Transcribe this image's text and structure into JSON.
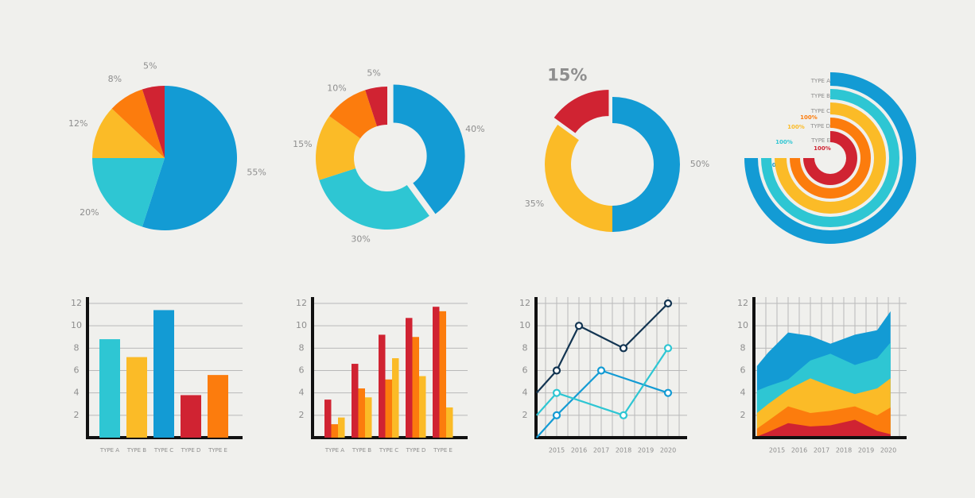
{
  "palette": {
    "blue": "#139bd4",
    "teal": "#2ec6d3",
    "yellow": "#fbbb27",
    "orange": "#fc7c0d",
    "red": "#d02332",
    "navy": "#133552",
    "label": "#8e8e8e",
    "axis": "#111111",
    "grid": "#b9b9b9"
  },
  "chart_data": [
    {
      "type": "pie",
      "slices": [
        {
          "label": "55%",
          "value": 55,
          "color": "blue"
        },
        {
          "label": "20%",
          "value": 20,
          "color": "teal"
        },
        {
          "label": "12%",
          "value": 12,
          "color": "yellow"
        },
        {
          "label": "8%",
          "value": 8,
          "color": "orange"
        },
        {
          "label": "5%",
          "value": 5,
          "color": "red"
        }
      ]
    },
    {
      "type": "pie",
      "variant": "donut",
      "slices": [
        {
          "label": "40%",
          "value": 40,
          "color": "blue",
          "exploded": true
        },
        {
          "label": "30%",
          "value": 30,
          "color": "teal"
        },
        {
          "label": "15%",
          "value": 15,
          "color": "yellow"
        },
        {
          "label": "10%",
          "value": 10,
          "color": "orange"
        },
        {
          "label": "5%",
          "value": 5,
          "color": "red"
        }
      ]
    },
    {
      "type": "pie",
      "variant": "donut",
      "slices": [
        {
          "label": "50%",
          "value": 50,
          "color": "blue"
        },
        {
          "label": "35%",
          "value": 35,
          "color": "yellow"
        },
        {
          "label": "15%",
          "value": 15,
          "color": "red",
          "exploded": true,
          "emphasized": true
        }
      ]
    },
    {
      "type": "pie",
      "variant": "concentric-rings",
      "rings": [
        {
          "label": "TYPE A",
          "value_label": "100%",
          "value": 100,
          "color": "blue"
        },
        {
          "label": "TYPE B",
          "value_label": "100%",
          "value": 100,
          "color": "teal"
        },
        {
          "label": "TYPE C",
          "value_label": "100%",
          "value": 100,
          "color": "yellow"
        },
        {
          "label": "TYPE D",
          "value_label": "100%",
          "value": 100,
          "color": "orange"
        },
        {
          "label": "TYPE E",
          "value_label": "100%",
          "value": 100,
          "color": "red"
        }
      ]
    },
    {
      "type": "bar",
      "categories": [
        "TYPE A",
        "TYPE B",
        "TYPE C",
        "TYPE D",
        "TYPE E"
      ],
      "values": [
        8.8,
        7.2,
        11.4,
        3.8,
        5.6
      ],
      "colors": [
        "teal",
        "yellow",
        "blue",
        "red",
        "orange"
      ],
      "ylim": [
        0,
        12
      ],
      "yticks": [
        "2",
        "4",
        "6",
        "8",
        "10",
        "12"
      ],
      "grid": true
    },
    {
      "type": "bar",
      "variant": "grouped",
      "categories": [
        "TYPE A",
        "TYPE B",
        "TYPE C",
        "TYPE D",
        "TYPE E"
      ],
      "series": [
        {
          "values": [
            3.4,
            6.6,
            9.2,
            10.7,
            11.7
          ],
          "color": "red"
        },
        {
          "values": [
            1.2,
            4.4,
            5.2,
            9.0,
            11.3
          ],
          "color": "orange"
        },
        {
          "values": [
            1.8,
            3.6,
            7.1,
            5.5,
            2.7
          ],
          "color": "yellow"
        }
      ],
      "ylim": [
        0,
        12
      ],
      "yticks": [
        "2",
        "4",
        "6",
        "8",
        "10",
        "12"
      ],
      "grid": true
    },
    {
      "type": "line",
      "x": [
        "2015",
        "2016",
        "2017",
        "2018",
        "2019",
        "2020"
      ],
      "series": [
        {
          "color": "navy",
          "points": [
            [
              2014.1,
              4
            ],
            [
              2015,
              6
            ],
            [
              2016,
              10
            ],
            [
              2018,
              8
            ],
            [
              2020,
              12
            ]
          ]
        },
        {
          "color": "blue",
          "points": [
            [
              2014.1,
              0
            ],
            [
              2015,
              2
            ],
            [
              2017,
              6
            ],
            [
              2020,
              4
            ]
          ]
        },
        {
          "color": "teal",
          "points": [
            [
              2014.1,
              2
            ],
            [
              2015,
              4
            ],
            [
              2018,
              2
            ],
            [
              2020,
              8
            ]
          ]
        }
      ],
      "xlim": [
        2014.1,
        2020.9
      ],
      "ylim": [
        0,
        12
      ],
      "yticks": [
        "2",
        "4",
        "6",
        "8",
        "10",
        "12"
      ],
      "grid": true
    },
    {
      "type": "area",
      "x": [
        2014.1,
        2014.6,
        2015.5,
        2016.5,
        2017.4,
        2018.5,
        2019.5,
        2020.1
      ],
      "xticks": [
        "2015",
        "2016",
        "2017",
        "2018",
        "2019",
        "2020"
      ],
      "series": [
        {
          "color": "blue",
          "values": [
            6.4,
            7.6,
            9.4,
            9.1,
            8.4,
            9.2,
            9.6,
            11.3
          ]
        },
        {
          "color": "teal",
          "values": [
            4.2,
            4.6,
            5.2,
            6.9,
            7.5,
            6.5,
            7.1,
            8.5
          ]
        },
        {
          "color": "yellow",
          "values": [
            2.2,
            3.0,
            4.3,
            5.3,
            4.6,
            3.9,
            4.4,
            5.3
          ]
        },
        {
          "color": "orange",
          "values": [
            0.8,
            1.5,
            2.8,
            2.2,
            2.4,
            2.8,
            2.0,
            2.7
          ]
        },
        {
          "color": "red",
          "values": [
            0.1,
            0.5,
            1.3,
            1.0,
            1.1,
            1.6,
            0.6,
            0.3
          ]
        }
      ],
      "xlim": [
        2014.1,
        2020.1
      ],
      "ylim": [
        0,
        12
      ],
      "yticks": [
        "2",
        "4",
        "6",
        "8",
        "10",
        "12"
      ],
      "grid": true
    }
  ]
}
